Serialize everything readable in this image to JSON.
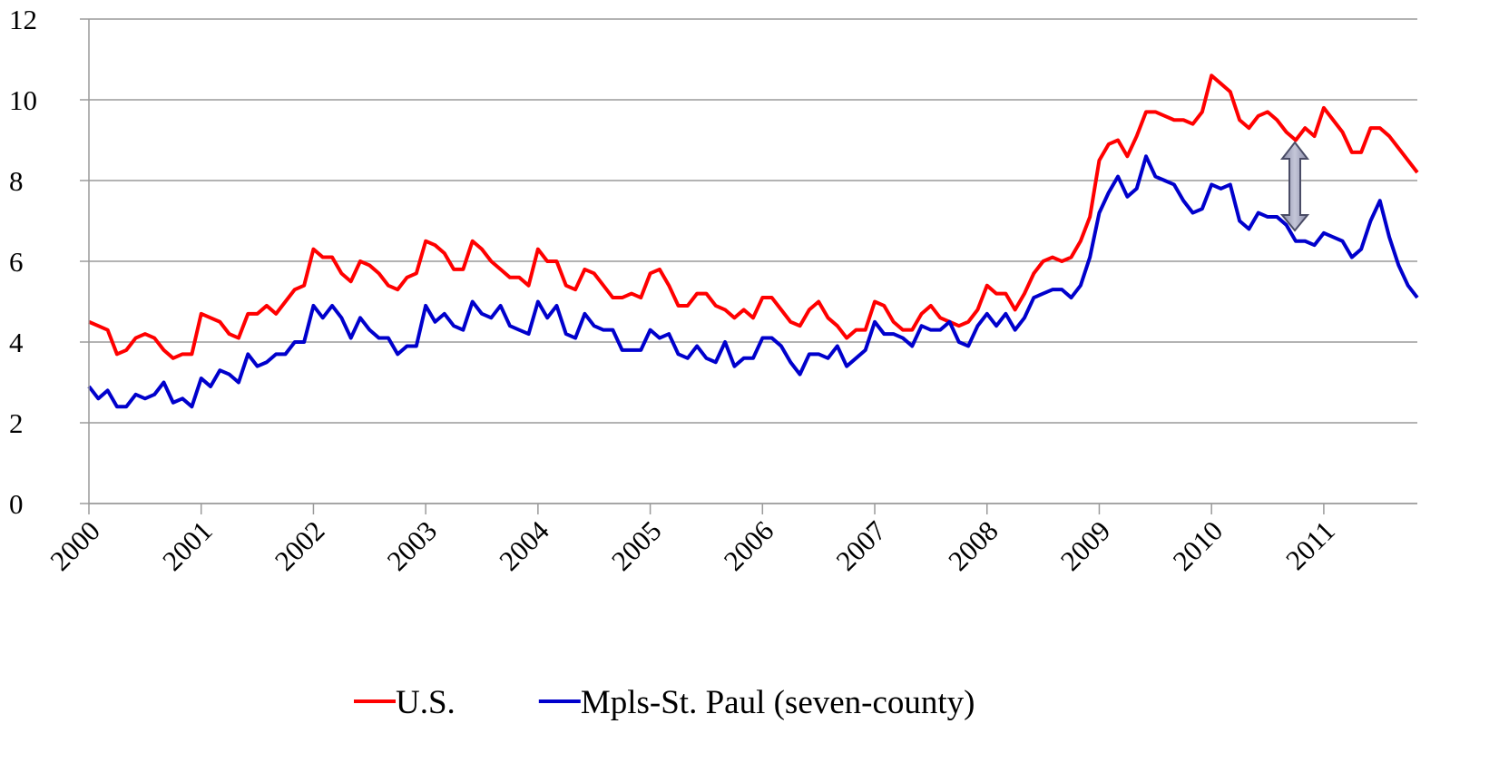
{
  "chart_data": {
    "type": "line",
    "categories": [
      "2000",
      null,
      null,
      null,
      null,
      null,
      null,
      null,
      null,
      null,
      null,
      null,
      "2001",
      null,
      null,
      null,
      null,
      null,
      null,
      null,
      null,
      null,
      null,
      null,
      "2002",
      null,
      null,
      null,
      null,
      null,
      null,
      null,
      null,
      null,
      null,
      null,
      "2003",
      null,
      null,
      null,
      null,
      null,
      null,
      null,
      null,
      null,
      null,
      null,
      "2004",
      null,
      null,
      null,
      null,
      null,
      null,
      null,
      null,
      null,
      null,
      null,
      "2005",
      null,
      null,
      null,
      null,
      null,
      null,
      null,
      null,
      null,
      null,
      null,
      "2006",
      null,
      null,
      null,
      null,
      null,
      null,
      null,
      null,
      null,
      null,
      null,
      "2007",
      null,
      null,
      null,
      null,
      null,
      null,
      null,
      null,
      null,
      null,
      null,
      "2008",
      null,
      null,
      null,
      null,
      null,
      null,
      null,
      null,
      null,
      null,
      null,
      "2009",
      null,
      null,
      null,
      null,
      null,
      null,
      null,
      null,
      null,
      null,
      null,
      "2010",
      null,
      null,
      null,
      null,
      null,
      null,
      null,
      null,
      null,
      null,
      null,
      "2011",
      null,
      null,
      null,
      null,
      null,
      null,
      null,
      null,
      null,
      null
    ],
    "series": [
      {
        "name": "U.S.",
        "color": "#ff0000",
        "values": [
          4.5,
          4.4,
          4.3,
          3.7,
          3.8,
          4.1,
          4.2,
          4.1,
          3.8,
          3.6,
          3.7,
          3.7,
          4.7,
          4.6,
          4.5,
          4.2,
          4.1,
          4.7,
          4.7,
          4.9,
          4.7,
          5.0,
          5.3,
          5.4,
          6.3,
          6.1,
          6.1,
          5.7,
          5.5,
          6.0,
          5.9,
          5.7,
          5.4,
          5.3,
          5.6,
          5.7,
          6.5,
          6.4,
          6.2,
          5.8,
          5.8,
          6.5,
          6.3,
          6.0,
          5.8,
          5.6,
          5.6,
          5.4,
          6.3,
          6.0,
          6.0,
          5.4,
          5.3,
          5.8,
          5.7,
          5.4,
          5.1,
          5.1,
          5.2,
          5.1,
          5.7,
          5.8,
          5.4,
          4.9,
          4.9,
          5.2,
          5.2,
          4.9,
          4.8,
          4.6,
          4.8,
          4.6,
          5.1,
          5.1,
          4.8,
          4.5,
          4.4,
          4.8,
          5.0,
          4.6,
          4.4,
          4.1,
          4.3,
          4.3,
          5.0,
          4.9,
          4.5,
          4.3,
          4.3,
          4.7,
          4.9,
          4.6,
          4.5,
          4.4,
          4.5,
          4.8,
          5.4,
          5.2,
          5.2,
          4.8,
          5.2,
          5.7,
          6.0,
          6.1,
          6.0,
          6.1,
          6.5,
          7.1,
          8.5,
          8.9,
          9.0,
          8.6,
          9.1,
          9.7,
          9.7,
          9.6,
          9.5,
          9.5,
          9.4,
          9.7,
          10.6,
          10.4,
          10.2,
          9.5,
          9.3,
          9.6,
          9.7,
          9.5,
          9.2,
          9.0,
          9.3,
          9.1,
          9.8,
          9.5,
          9.2,
          8.7,
          8.7,
          9.3,
          9.3,
          9.1,
          8.8,
          8.5,
          8.2
        ]
      },
      {
        "name": "Mpls-St. Paul (seven-county)",
        "color": "#0000cc",
        "values": [
          2.9,
          2.6,
          2.8,
          2.4,
          2.4,
          2.7,
          2.6,
          2.7,
          3.0,
          2.5,
          2.6,
          2.4,
          3.1,
          2.9,
          3.3,
          3.2,
          3.0,
          3.7,
          3.4,
          3.5,
          3.7,
          3.7,
          4.0,
          4.0,
          4.9,
          4.6,
          4.9,
          4.6,
          4.1,
          4.6,
          4.3,
          4.1,
          4.1,
          3.7,
          3.9,
          3.9,
          4.9,
          4.5,
          4.7,
          4.4,
          4.3,
          5.0,
          4.7,
          4.6,
          4.9,
          4.4,
          4.3,
          4.2,
          5.0,
          4.6,
          4.9,
          4.2,
          4.1,
          4.7,
          4.4,
          4.3,
          4.3,
          3.8,
          3.8,
          3.8,
          4.3,
          4.1,
          4.2,
          3.7,
          3.6,
          3.9,
          3.6,
          3.5,
          4.0,
          3.4,
          3.6,
          3.6,
          4.1,
          4.1,
          3.9,
          3.5,
          3.2,
          3.7,
          3.7,
          3.6,
          3.9,
          3.4,
          3.6,
          3.8,
          4.5,
          4.2,
          4.2,
          4.1,
          3.9,
          4.4,
          4.3,
          4.3,
          4.5,
          4.0,
          3.9,
          4.4,
          4.7,
          4.4,
          4.7,
          4.3,
          4.6,
          5.1,
          5.2,
          5.3,
          5.3,
          5.1,
          5.4,
          6.1,
          7.2,
          7.7,
          8.1,
          7.6,
          7.8,
          8.6,
          8.1,
          8.0,
          7.9,
          7.5,
          7.2,
          7.3,
          7.9,
          7.8,
          7.9,
          7.0,
          6.8,
          7.2,
          7.1,
          7.1,
          6.9,
          6.5,
          6.5,
          6.4,
          6.7,
          6.6,
          6.5,
          6.1,
          6.3,
          7.0,
          7.5,
          6.6,
          5.9,
          5.4,
          5.1
        ]
      }
    ],
    "ylim": [
      0,
      12
    ],
    "yticks": [
      0,
      2,
      4,
      6,
      8,
      10,
      12
    ],
    "grid": true,
    "legend": "bottom"
  }
}
